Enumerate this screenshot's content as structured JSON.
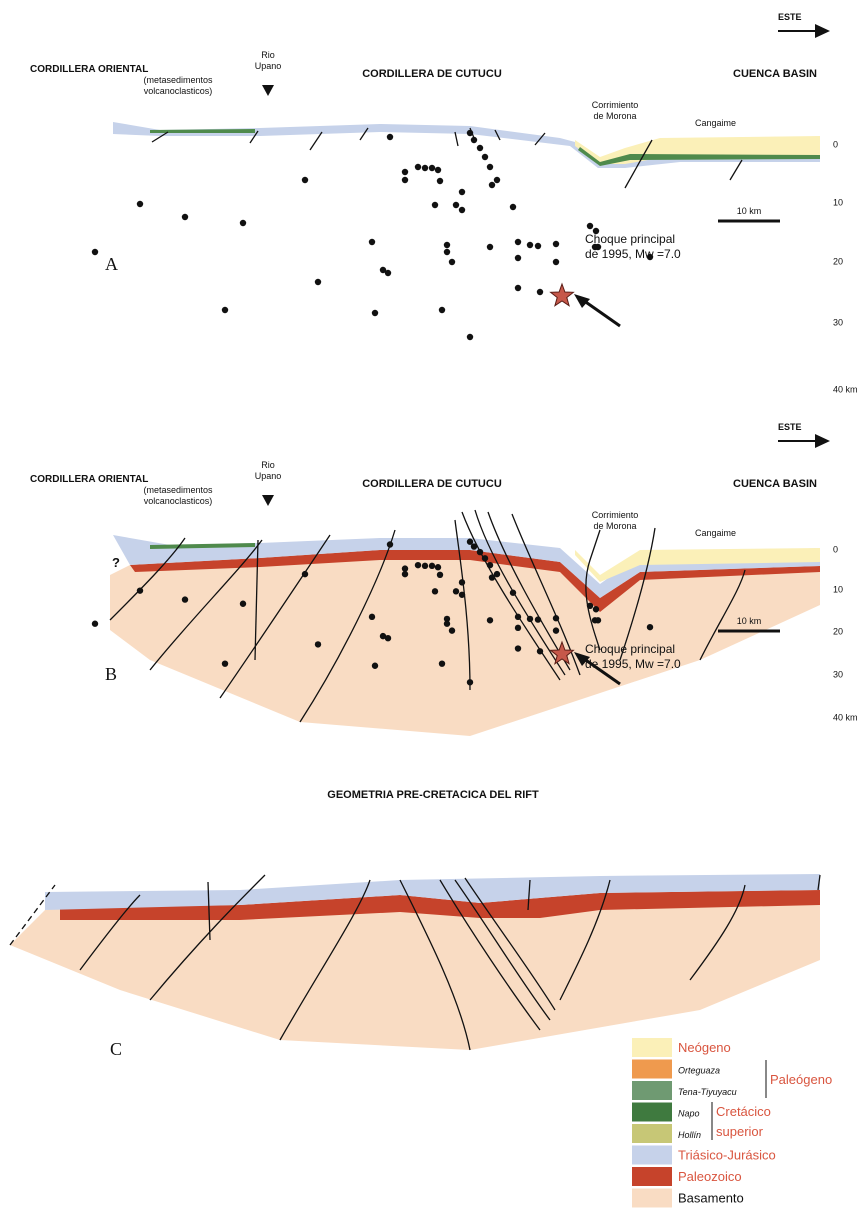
{
  "panel_a": {
    "letter": "A",
    "direction": "ESTE",
    "cordillera_oriental": [
      "CORDILLERA ORIENTAL",
      "(metasedimentos",
      "volcanoclasticos)"
    ],
    "rio_upano": [
      "Rio",
      "Upano"
    ],
    "cutucu": "CORDILLERA DE CUTUCU",
    "cuenca": "CUENCA BASIN",
    "morona": [
      "Corrimiento",
      "de Morona"
    ],
    "cangaime": "Cangaime",
    "depth_labels": [
      "0",
      "10",
      "20",
      "30",
      "40 km"
    ],
    "scale": "10 km",
    "mainshock": [
      "Choque principal",
      "de 1995, Mw =7.0"
    ]
  },
  "panel_b": {
    "letter": "B",
    "direction": "ESTE",
    "cordillera_oriental": [
      "CORDILLERA ORIENTAL",
      "(metasedimentos",
      "volcanoclasticos)"
    ],
    "rio_upano": [
      "Rio",
      "Upano"
    ],
    "cutucu": "CORDILLERA DE CUTUCU",
    "cuenca": "CUENCA BASIN",
    "morona": [
      "Corrimiento",
      "de Morona"
    ],
    "cangaime": "Cangaime",
    "depth_labels": [
      "0",
      "10",
      "20",
      "30",
      "40 km"
    ],
    "scale": "10 km",
    "mainshock": [
      "Choque principal",
      "de 1995, Mw =7.0"
    ],
    "question": "?"
  },
  "panel_c": {
    "title": "GEOMETRIA PRE-CRETACICA DEL RIFT",
    "letter": "C"
  },
  "legend": {
    "items": [
      "Neógeno",
      "Orteguaza",
      "Tena-Tiyuyacu",
      "Napo",
      "Hollín",
      "Triásico-Jurásico",
      "Paleozoico",
      "Basamento"
    ],
    "groups": [
      "Paleógeno",
      "Cretácico",
      "superior"
    ]
  }
}
